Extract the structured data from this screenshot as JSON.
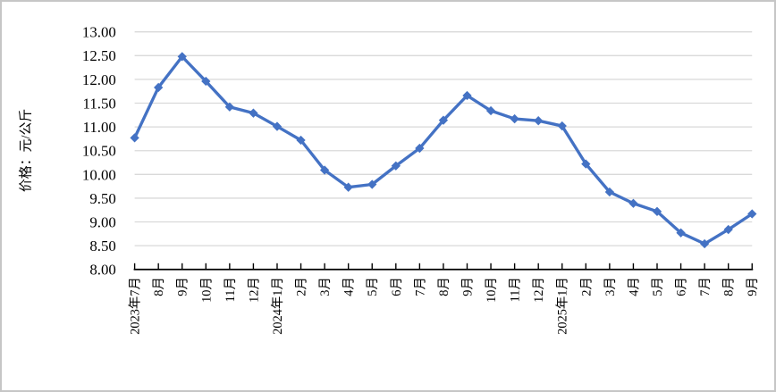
{
  "window": {
    "background": "#ffffff",
    "border_color": "#c6c6c6"
  },
  "chart_data": {
    "type": "line",
    "title": "",
    "xlabel": "",
    "ylabel": "价格：元/公斤",
    "categories": [
      "2023年7月",
      "8月",
      "9月",
      "10月",
      "11月",
      "12月",
      "2024年1月",
      "2月",
      "3月",
      "4月",
      "5月",
      "6月",
      "7月",
      "8月",
      "9月",
      "10月",
      "11月",
      "12月",
      "2025年1月",
      "2月",
      "3月",
      "4月",
      "5月",
      "6月",
      "7月",
      "8月",
      "9月"
    ],
    "values": [
      10.77,
      11.83,
      12.48,
      11.96,
      11.42,
      11.29,
      11.01,
      10.72,
      10.09,
      9.73,
      9.79,
      10.18,
      10.55,
      11.14,
      11.66,
      11.34,
      11.17,
      11.13,
      11.02,
      10.22,
      9.63,
      9.39,
      9.22,
      8.77,
      8.54,
      8.84,
      9.17
    ],
    "ylim": [
      8,
      13
    ],
    "ytick_step": 0.5,
    "ytick_labels": [
      "8.00",
      "8.50",
      "9.00",
      "9.50",
      "10.00",
      "10.50",
      "11.00",
      "11.50",
      "12.00",
      "12.50",
      "13.00"
    ],
    "grid": true,
    "legend_position": "none",
    "line_color": "#4472C4",
    "marker": "diamond",
    "marker_color": "#4472C4",
    "gridline_color": "#D9D9D9",
    "axis_color": "#000000"
  }
}
